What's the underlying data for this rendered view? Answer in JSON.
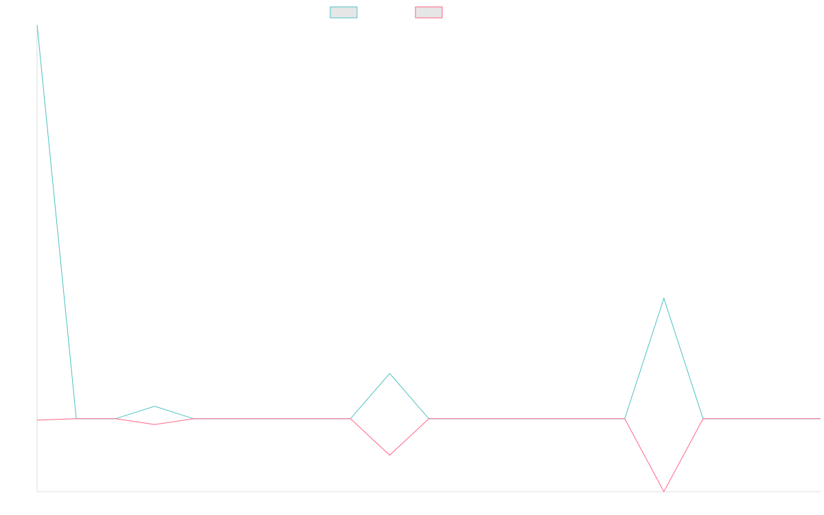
{
  "chart_data": {
    "type": "line",
    "title": "",
    "xlabel": "",
    "ylabel": "",
    "grid": false,
    "legend_position": "top-center",
    "x": [
      0,
      1,
      2,
      3,
      4,
      5,
      6,
      7,
      8,
      9,
      10,
      11,
      12,
      13,
      14,
      15,
      16,
      17,
      18,
      19,
      20
    ],
    "xlim": [
      0,
      20
    ],
    "ylim": [
      -10,
      54
    ],
    "series": [
      {
        "color": "#4bc0c0",
        "values": [
          54,
          0,
          0,
          1.7,
          0,
          0,
          0,
          0,
          0,
          6.2,
          0,
          0,
          0,
          0,
          0,
          0,
          16.5,
          0,
          0,
          0,
          0
        ]
      },
      {
        "color": "#ff6384",
        "values": [
          -0.2,
          0,
          0,
          -0.8,
          0,
          0,
          0,
          0,
          0,
          -5.0,
          0,
          0,
          0,
          0,
          0,
          0,
          -10.0,
          0,
          0,
          0,
          0
        ]
      }
    ]
  }
}
